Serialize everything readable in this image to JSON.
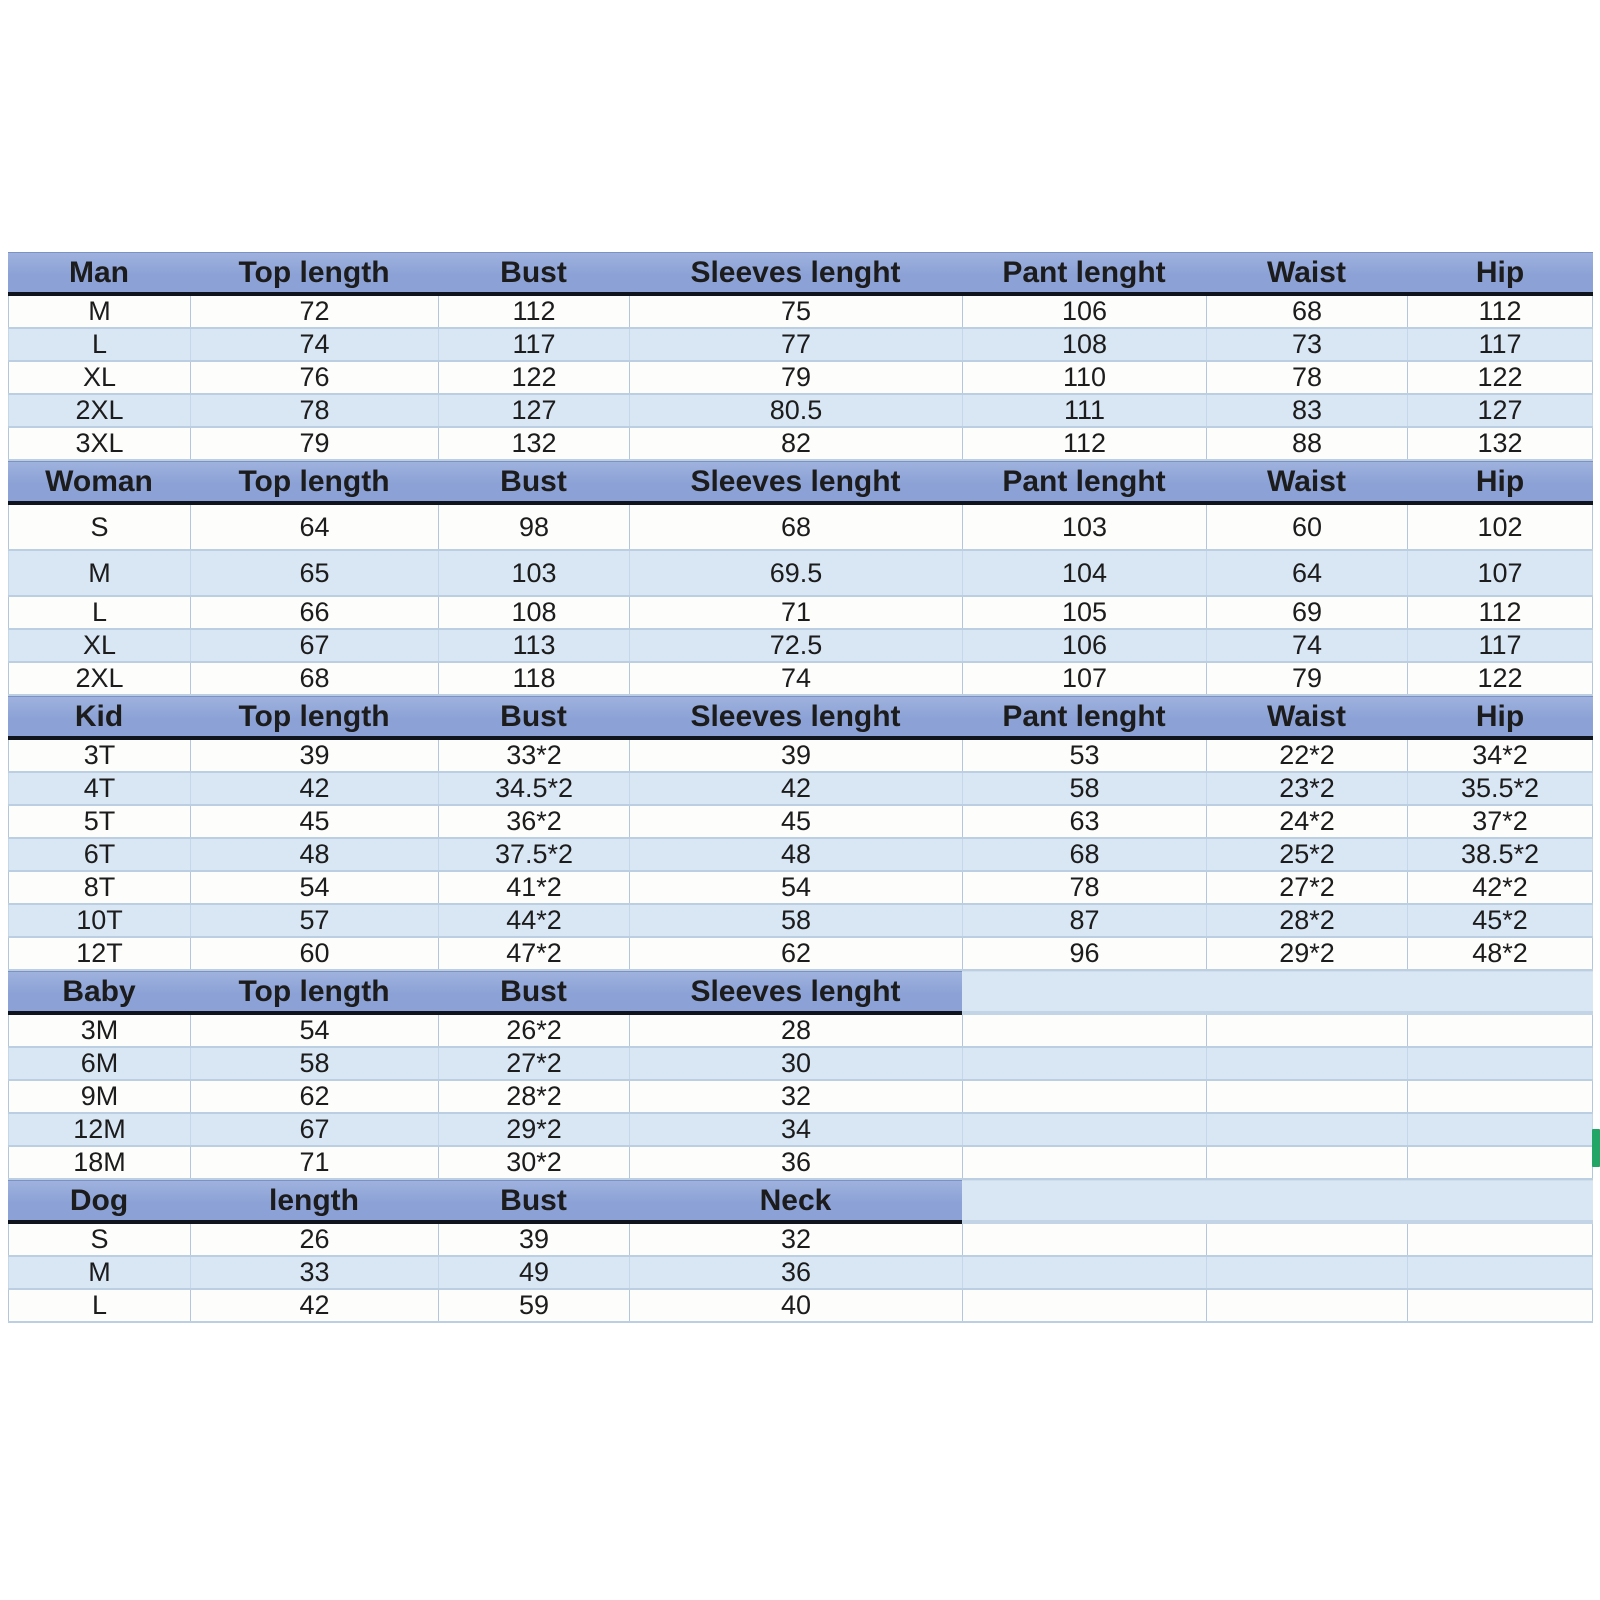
{
  "colors": {
    "header_bg": "#8ca2d6",
    "header_bg_top": "#9fb2de",
    "header_underline": "#10141c",
    "stripe_row": "#d9e6f4",
    "plain_row": "#fdfdfc",
    "grid_line": "#b3c6dc",
    "text": "#1c1c1c",
    "selection_green": "#22a567"
  },
  "sections": [
    {
      "name": "man",
      "header": [
        "Man",
        "Top length",
        "Bust",
        "Sleeves lenght",
        "Pant lenght",
        "Waist",
        "Hip"
      ],
      "rows": [
        [
          "M",
          "72",
          "112",
          "75",
          "106",
          "68",
          "112"
        ],
        [
          "L",
          "74",
          "117",
          "77",
          "108",
          "73",
          "117"
        ],
        [
          "XL",
          "76",
          "122",
          "79",
          "110",
          "78",
          "122"
        ],
        [
          "2XL",
          "78",
          "127",
          "80.5",
          "111",
          "83",
          "127"
        ],
        [
          "3XL",
          "79",
          "132",
          "82",
          "112",
          "88",
          "132"
        ]
      ]
    },
    {
      "name": "woman",
      "header": [
        "Woman",
        "Top length",
        "Bust",
        "Sleeves lenght",
        "Pant lenght",
        "Waist",
        "Hip"
      ],
      "rows": [
        [
          "S",
          "64",
          "98",
          "68",
          "103",
          "60",
          "102"
        ],
        [
          "M",
          "65",
          "103",
          "69.5",
          "104",
          "64",
          "107"
        ],
        [
          "L",
          "66",
          "108",
          "71",
          "105",
          "69",
          "112"
        ],
        [
          "XL",
          "67",
          "113",
          "72.5",
          "106",
          "74",
          "117"
        ],
        [
          "2XL",
          "68",
          "118",
          "74",
          "107",
          "79",
          "122"
        ]
      ]
    },
    {
      "name": "kid",
      "header": [
        "Kid",
        "Top length",
        "Bust",
        "Sleeves lenght",
        "Pant lenght",
        "Waist",
        "Hip"
      ],
      "rows": [
        [
          "3T",
          "39",
          "33*2",
          "39",
          "53",
          "22*2",
          "34*2"
        ],
        [
          "4T",
          "42",
          "34.5*2",
          "42",
          "58",
          "23*2",
          "35.5*2"
        ],
        [
          "5T",
          "45",
          "36*2",
          "45",
          "63",
          "24*2",
          "37*2"
        ],
        [
          "6T",
          "48",
          "37.5*2",
          "48",
          "68",
          "25*2",
          "38.5*2"
        ],
        [
          "8T",
          "54",
          "41*2",
          "54",
          "78",
          "27*2",
          "42*2"
        ],
        [
          "10T",
          "57",
          "44*2",
          "58",
          "87",
          "28*2",
          "45*2"
        ],
        [
          "12T",
          "60",
          "47*2",
          "62",
          "96",
          "29*2",
          "48*2"
        ]
      ]
    },
    {
      "name": "baby",
      "header": [
        "Baby",
        "Top length",
        "Bust",
        "Sleeves lenght"
      ],
      "rows": [
        [
          "3M",
          "54",
          "26*2",
          "28"
        ],
        [
          "6M",
          "58",
          "27*2",
          "30"
        ],
        [
          "9M",
          "62",
          "28*2",
          "32"
        ],
        [
          "12M",
          "67",
          "29*2",
          "34"
        ],
        [
          "18M",
          "71",
          "30*2",
          "36"
        ]
      ]
    },
    {
      "name": "dog",
      "header": [
        "Dog",
        "length",
        "Bust",
        "Neck"
      ],
      "rows": [
        [
          "S",
          "26",
          "39",
          "32"
        ],
        [
          "M",
          "33",
          "49",
          "36"
        ],
        [
          "L",
          "42",
          "59",
          "40"
        ]
      ]
    }
  ],
  "selection_indicator": {
    "color": "#22a567"
  }
}
